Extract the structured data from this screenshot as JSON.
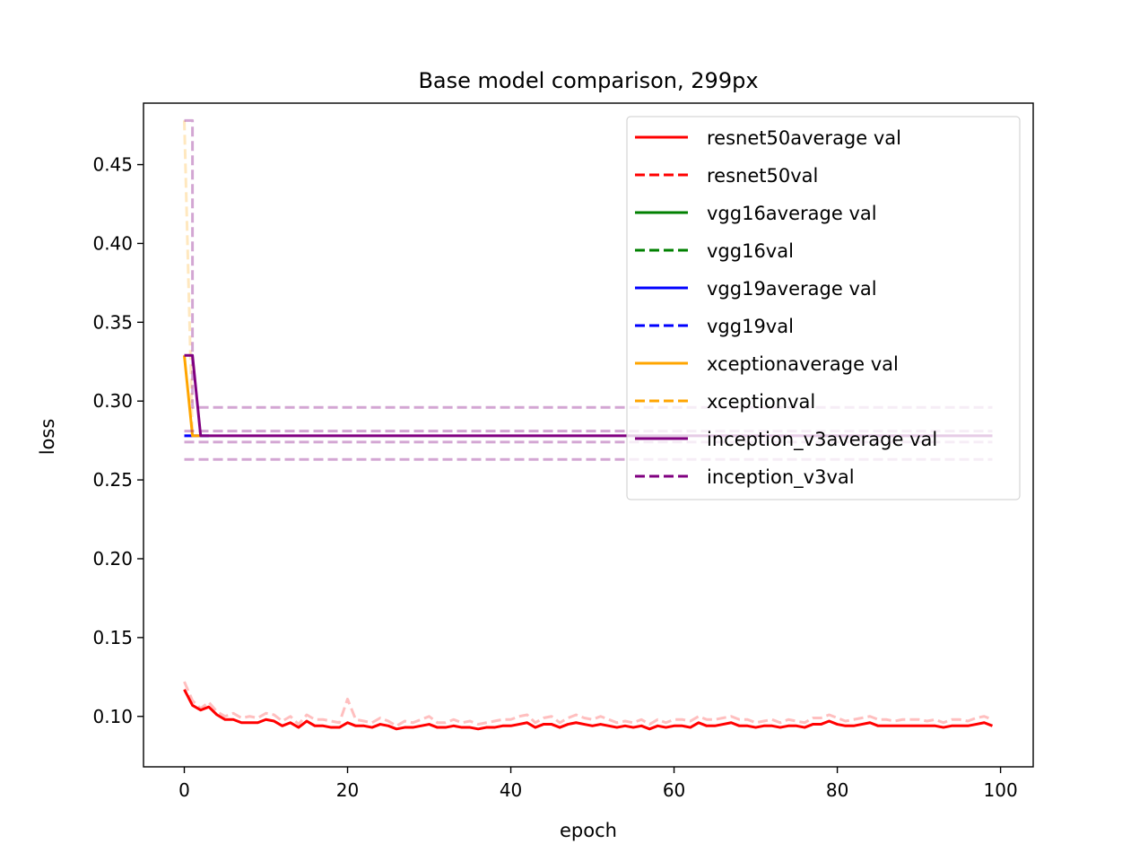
{
  "chart_data": {
    "type": "line",
    "title": "Base model comparison, 299px",
    "xlabel": "epoch",
    "ylabel": "loss",
    "xlim": [
      -5,
      104
    ],
    "ylim": [
      0.068,
      0.489
    ],
    "xticks": [
      0,
      20,
      40,
      60,
      80,
      100
    ],
    "xtick_labels": [
      "0",
      "20",
      "40",
      "60",
      "80",
      "100"
    ],
    "yticks": [
      0.1,
      0.15,
      0.2,
      0.25,
      0.3,
      0.35,
      0.4,
      0.45
    ],
    "ytick_labels": [
      "0.10",
      "0.15",
      "0.20",
      "0.25",
      "0.30",
      "0.35",
      "0.40",
      "0.45"
    ],
    "grid": false,
    "legend_position": "top-right",
    "series": [
      {
        "name": "resnet50average val",
        "color": "#ff0000",
        "style": "solid",
        "alpha": 1,
        "x_start": 0,
        "values": [
          0.117,
          0.107,
          0.104,
          0.106,
          0.101,
          0.098,
          0.098,
          0.096,
          0.096,
          0.096,
          0.098,
          0.097,
          0.094,
          0.096,
          0.093,
          0.097,
          0.094,
          0.094,
          0.093,
          0.093,
          0.096,
          0.094,
          0.094,
          0.093,
          0.095,
          0.094,
          0.092,
          0.093,
          0.093,
          0.094,
          0.095,
          0.093,
          0.093,
          0.094,
          0.093,
          0.093,
          0.092,
          0.093,
          0.093,
          0.094,
          0.094,
          0.095,
          0.096,
          0.093,
          0.095,
          0.095,
          0.093,
          0.095,
          0.096,
          0.095,
          0.094,
          0.095,
          0.094,
          0.093,
          0.094,
          0.093,
          0.094,
          0.092,
          0.094,
          0.093,
          0.094,
          0.094,
          0.093,
          0.096,
          0.094,
          0.094,
          0.095,
          0.096,
          0.094,
          0.094,
          0.093,
          0.094,
          0.094,
          0.093,
          0.094,
          0.094,
          0.093,
          0.095,
          0.095,
          0.097,
          0.095,
          0.094,
          0.094,
          0.095,
          0.096,
          0.094,
          0.094,
          0.094,
          0.094,
          0.094,
          0.094,
          0.094,
          0.094,
          0.093,
          0.094,
          0.094,
          0.094,
          0.095,
          0.096,
          0.094
        ]
      },
      {
        "name": "resnet50val",
        "color": "#ff0000",
        "style": "dashed",
        "alpha": 0.25,
        "x_start": 0,
        "values": [
          0.122,
          0.11,
          0.105,
          0.109,
          0.103,
          0.1,
          0.102,
          0.099,
          0.1,
          0.099,
          0.102,
          0.101,
          0.097,
          0.1,
          0.095,
          0.101,
          0.098,
          0.098,
          0.097,
          0.096,
          0.111,
          0.098,
          0.097,
          0.096,
          0.099,
          0.097,
          0.094,
          0.097,
          0.096,
          0.098,
          0.1,
          0.096,
          0.096,
          0.098,
          0.096,
          0.097,
          0.095,
          0.096,
          0.097,
          0.098,
          0.098,
          0.1,
          0.101,
          0.096,
          0.099,
          0.1,
          0.096,
          0.099,
          0.101,
          0.099,
          0.098,
          0.1,
          0.098,
          0.096,
          0.097,
          0.096,
          0.098,
          0.095,
          0.098,
          0.096,
          0.098,
          0.098,
          0.097,
          0.1,
          0.098,
          0.098,
          0.099,
          0.1,
          0.098,
          0.098,
          0.096,
          0.097,
          0.098,
          0.096,
          0.098,
          0.097,
          0.096,
          0.099,
          0.099,
          0.101,
          0.099,
          0.097,
          0.098,
          0.099,
          0.1,
          0.098,
          0.098,
          0.097,
          0.098,
          0.098,
          0.098,
          0.097,
          0.098,
          0.096,
          0.098,
          0.098,
          0.097,
          0.099,
          0.1,
          0.098
        ]
      },
      {
        "name": "vgg16average val",
        "color": "#008000",
        "style": "solid",
        "alpha": 1,
        "x_start": 0,
        "values": []
      },
      {
        "name": "vgg16val",
        "color": "#008000",
        "style": "dashed",
        "alpha": 1,
        "x_start": 0,
        "values": []
      },
      {
        "name": "vgg19average val",
        "color": "#0000ff",
        "style": "solid",
        "alpha": 1,
        "x_start": 0,
        "values": [
          0.278,
          0.278,
          0.278,
          0.278
        ]
      },
      {
        "name": "vgg19val",
        "color": "#0000ff",
        "style": "dashed",
        "alpha": 1,
        "x_start": 0,
        "values": []
      },
      {
        "name": "xceptionaverage val",
        "color": "#ffa500",
        "style": "solid",
        "alpha": 1,
        "x_start": 0,
        "values": [
          0.329,
          0.278,
          0.278
        ]
      },
      {
        "name": "xceptionval",
        "color": "#ffa500",
        "style": "dashed",
        "alpha": 0.25,
        "x_start": 0,
        "values": [
          0.478,
          0.278,
          0.278
        ]
      },
      {
        "name": "inception_v3average val",
        "color": "#800080",
        "style": "solid",
        "alpha": 1,
        "x_start": 0,
        "values": [
          0.329,
          0.329,
          0.278,
          0.278,
          0.278,
          0.278,
          0.278,
          0.278,
          0.278,
          0.278,
          0.278,
          0.278,
          0.278,
          0.278,
          0.278,
          0.278,
          0.278,
          0.278,
          0.278,
          0.278,
          0.278,
          0.278,
          0.278,
          0.278,
          0.278,
          0.278,
          0.278,
          0.278,
          0.278,
          0.278,
          0.278,
          0.278,
          0.278,
          0.278,
          0.278,
          0.278,
          0.278,
          0.278,
          0.278,
          0.278,
          0.278,
          0.278,
          0.278,
          0.278,
          0.278,
          0.278,
          0.278,
          0.278,
          0.278,
          0.278,
          0.278,
          0.278,
          0.278,
          0.278,
          0.278,
          0.278,
          0.278,
          0.278,
          0.278,
          0.278,
          0.278,
          0.278,
          0.278,
          0.278,
          0.278,
          0.278,
          0.278,
          0.278,
          0.278,
          0.278,
          0.278,
          0.278,
          0.278,
          0.278,
          0.278,
          0.278,
          0.278,
          0.278,
          0.278,
          0.278,
          0.278,
          0.278,
          0.278,
          0.278,
          0.278,
          0.278,
          0.278,
          0.278,
          0.278,
          0.278,
          0.278,
          0.278,
          0.278,
          0.278,
          0.278,
          0.278,
          0.278,
          0.278,
          0.278,
          0.278
        ]
      },
      {
        "name": "inception_v3val",
        "color": "#800080",
        "style": "dashed",
        "alpha": 0.35,
        "x_start": 0,
        "lines": [
          {
            "x": [
              0,
              1,
              1,
              2,
              2,
              99
            ],
            "y": [
              0.478,
              0.478,
              0.296,
              0.296,
              0.296,
              0.296
            ]
          },
          {
            "x": [
              0,
              99
            ],
            "y": [
              0.274,
              0.274
            ]
          },
          {
            "x": [
              0,
              99
            ],
            "y": [
              0.263,
              0.263
            ]
          },
          {
            "x": [
              0,
              99
            ],
            "y": [
              0.281,
              0.281
            ]
          }
        ]
      }
    ]
  }
}
